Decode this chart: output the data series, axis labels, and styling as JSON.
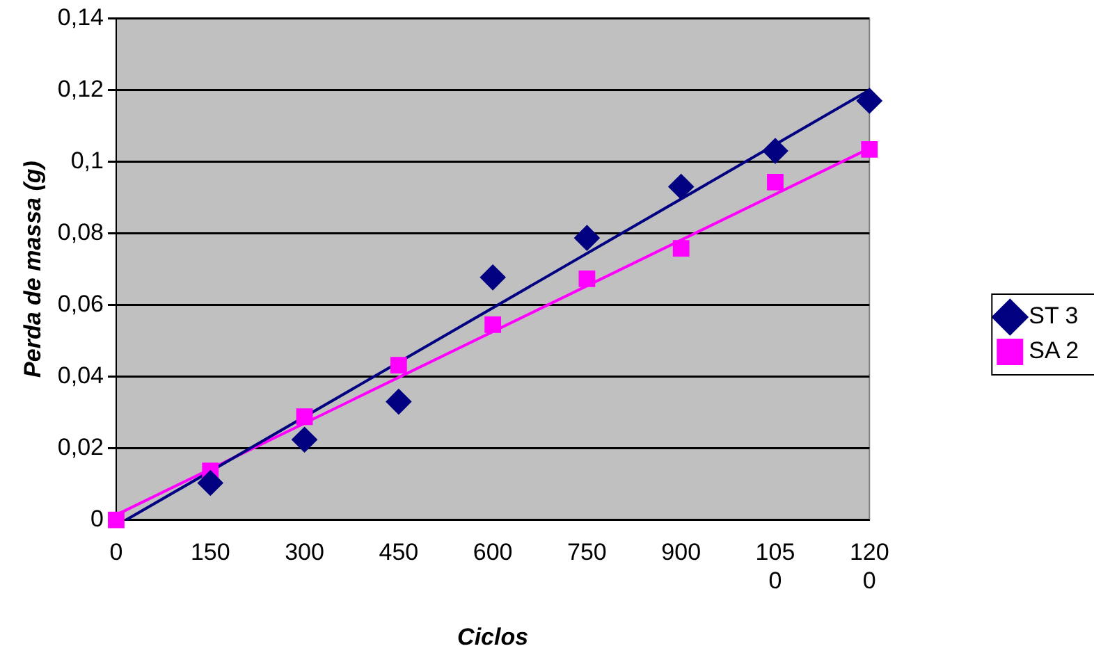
{
  "chart_data": {
    "type": "scatter",
    "xlabel": "Ciclos",
    "ylabel": "Perda de massa (g)",
    "xlim": [
      0,
      1200
    ],
    "xticks": [
      0,
      150,
      300,
      450,
      600,
      750,
      900,
      1050,
      1200
    ],
    "ylim": [
      0,
      0.14
    ],
    "yticks": [
      {
        "value": 0,
        "label": "0"
      },
      {
        "value": 0.02,
        "label": "0,02"
      },
      {
        "value": 0.04,
        "label": "0,04"
      },
      {
        "value": 0.06,
        "label": "0,06"
      },
      {
        "value": 0.08,
        "label": "0,08"
      },
      {
        "value": 0.1,
        "label": "0,1"
      },
      {
        "value": 0.12,
        "label": "0,12"
      },
      {
        "value": 0.14,
        "label": "0,14"
      }
    ],
    "grid": "y",
    "legend": "right",
    "series": [
      {
        "name": "ST 3",
        "color": "#000080",
        "marker": "diamond",
        "x": [
          150,
          300,
          450,
          600,
          750,
          900,
          1050,
          1200
        ],
        "values": [
          0.0103,
          0.0224,
          0.033,
          0.0677,
          0.0787,
          0.093,
          0.103,
          0.117
        ]
      },
      {
        "name": "SA 2",
        "color": "#ff00ff",
        "marker": "square",
        "x": [
          0,
          150,
          300,
          450,
          600,
          750,
          900,
          1050,
          1200
        ],
        "values": [
          0,
          0.0137,
          0.0288,
          0.0432,
          0.0545,
          0.0673,
          0.0758,
          0.0943,
          0.1034
        ]
      },
      {
        "type": "line",
        "color": "#000080",
        "marker": "none",
        "x": [
          16,
          1200
        ],
        "values": [
          0,
          0.12
        ]
      },
      {
        "type": "line",
        "color": "#ff00ff",
        "marker": "none",
        "x": [
          0,
          1200
        ],
        "values": [
          0.0014,
          0.1037
        ]
      }
    ]
  }
}
